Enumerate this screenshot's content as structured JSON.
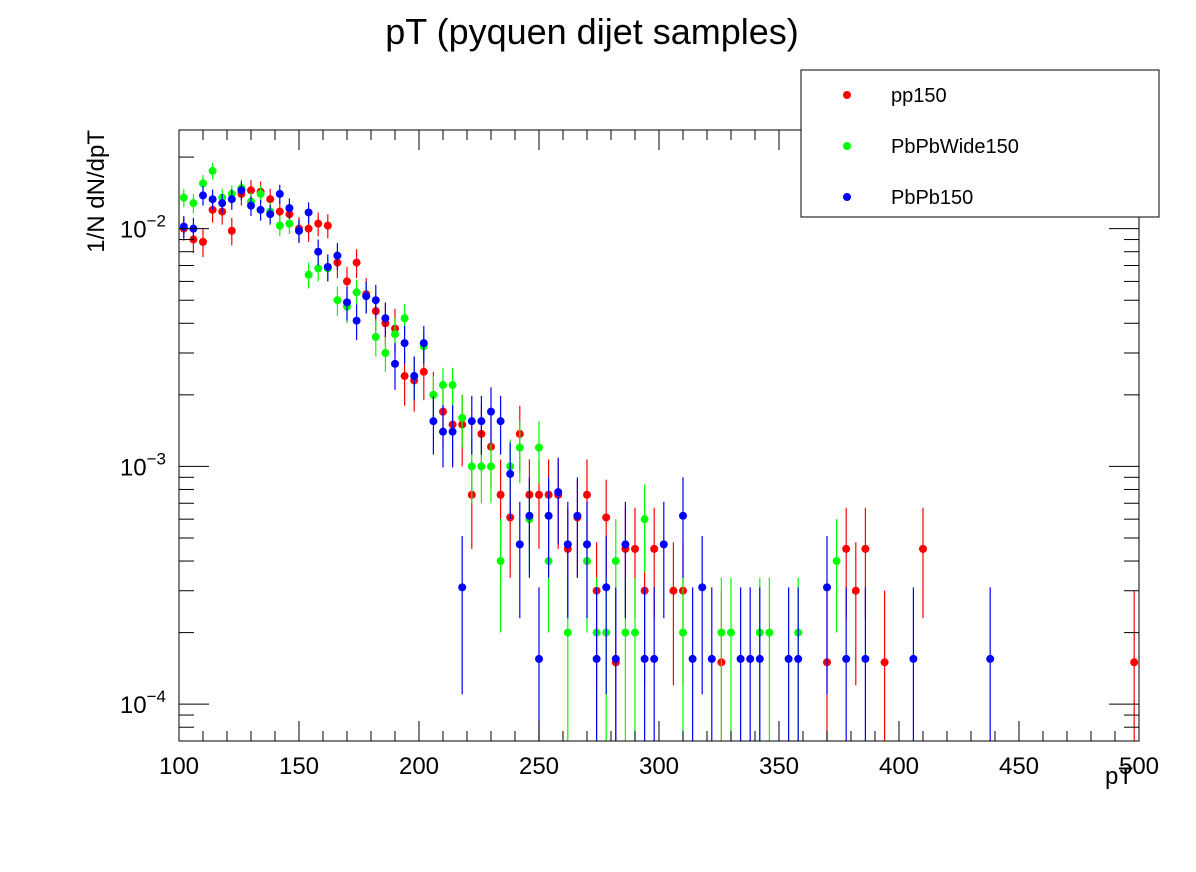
{
  "chart_data": {
    "type": "scatter",
    "title": "pT (pyquen dijet samples)",
    "xlabel": "pT",
    "ylabel": "1/N dN/dpT",
    "xlim": [
      100,
      500
    ],
    "ylim": [
      7e-05,
      0.026
    ],
    "yscale": "log",
    "x_ticks": [
      100,
      150,
      200,
      250,
      300,
      350,
      400,
      450,
      500
    ],
    "y_ticks": [
      {
        "value": 0.0001,
        "base": "10",
        "exp": "−4"
      },
      {
        "value": 0.001,
        "base": "10",
        "exp": "−3"
      },
      {
        "value": 0.01,
        "base": "10",
        "exp": "−2"
      }
    ],
    "legend_position": "top-right",
    "grid": false,
    "series": [
      {
        "name": "pp150",
        "color": "#ff0000",
        "points": [
          [
            102,
            0.01,
            0.0011
          ],
          [
            106,
            0.009,
            0.0011
          ],
          [
            110,
            0.0088,
            0.0012
          ],
          [
            114,
            0.012,
            0.0014
          ],
          [
            118,
            0.0118,
            0.0014
          ],
          [
            122,
            0.0098,
            0.0013
          ],
          [
            126,
            0.014,
            0.0015
          ],
          [
            130,
            0.0145,
            0.0015
          ],
          [
            134,
            0.0143,
            0.0015
          ],
          [
            138,
            0.0133,
            0.0014
          ],
          [
            142,
            0.0118,
            0.0013
          ],
          [
            146,
            0.0115,
            0.0013
          ],
          [
            150,
            0.01,
            0.0012
          ],
          [
            154,
            0.01,
            0.0012
          ],
          [
            158,
            0.0105,
            0.0012
          ],
          [
            162,
            0.0103,
            0.0012
          ],
          [
            166,
            0.0072,
            0.001
          ],
          [
            170,
            0.006,
            0.0009
          ],
          [
            174,
            0.0072,
            0.001
          ],
          [
            178,
            0.0053,
            0.0009
          ],
          [
            182,
            0.0045,
            0.0008
          ],
          [
            186,
            0.004,
            0.0008
          ],
          [
            190,
            0.0038,
            0.0008
          ],
          [
            194,
            0.0024,
            0.0006
          ],
          [
            198,
            0.0023,
            0.0006
          ],
          [
            202,
            0.0025,
            0.0006
          ],
          [
            206,
            0.002,
            0.0005
          ],
          [
            210,
            0.0017,
            0.0005
          ],
          [
            214,
            0.0015,
            0.0005
          ],
          [
            218,
            0.0015,
            0.0005
          ],
          [
            222,
            0.00076,
            0.00031
          ],
          [
            226,
            0.00137,
            0.00043
          ],
          [
            230,
            0.00121,
            0.0004
          ],
          [
            234,
            0.00076,
            0.00031
          ],
          [
            238,
            0.00061,
            0.00027
          ],
          [
            242,
            0.00137,
            0.00043
          ],
          [
            246,
            0.00076,
            0.00031
          ],
          [
            250,
            0.00076,
            0.00031
          ],
          [
            254,
            0.00076,
            0.00031
          ],
          [
            258,
            0.00076,
            0.00031
          ],
          [
            262,
            0.00045,
            0.00022
          ],
          [
            266,
            0.00061,
            0.00027
          ],
          [
            270,
            0.00076,
            0.00031
          ],
          [
            274,
            0.0003,
            0.00018
          ],
          [
            278,
            0.00061,
            0.00027
          ],
          [
            282,
            0.00015,
            0.00015
          ],
          [
            286,
            0.00045,
            0.00022
          ],
          [
            290,
            0.00045,
            0.00022
          ],
          [
            294,
            0.0003,
            0.00018
          ],
          [
            298,
            0.00045,
            0.00022
          ],
          [
            306,
            0.0003,
            0.00018
          ],
          [
            310,
            0.0003,
            0.00018
          ],
          [
            326,
            0.00015,
            0.00015
          ],
          [
            370,
            0.00015,
            0.00015
          ],
          [
            378,
            0.00045,
            0.00022
          ],
          [
            382,
            0.0003,
            0.00018
          ],
          [
            386,
            0.00045,
            0.00022
          ],
          [
            394,
            0.00015,
            0.00015
          ],
          [
            410,
            0.00045,
            0.00022
          ],
          [
            498,
            0.00015,
            0.00015
          ]
        ]
      },
      {
        "name": "PbPbWide150",
        "color": "#00ff00",
        "points": [
          [
            102,
            0.0135,
            0.0012
          ],
          [
            106,
            0.0128,
            0.0012
          ],
          [
            110,
            0.0155,
            0.0013
          ],
          [
            114,
            0.0175,
            0.0014
          ],
          [
            118,
            0.0135,
            0.0012
          ],
          [
            122,
            0.014,
            0.0012
          ],
          [
            126,
            0.0148,
            0.0013
          ],
          [
            130,
            0.013,
            0.0012
          ],
          [
            134,
            0.014,
            0.0012
          ],
          [
            138,
            0.0118,
            0.0011
          ],
          [
            142,
            0.0103,
            0.001
          ],
          [
            146,
            0.0105,
            0.001
          ],
          [
            150,
            0.0098,
            0.001
          ],
          [
            154,
            0.0064,
            0.0008
          ],
          [
            158,
            0.0068,
            0.0008
          ],
          [
            162,
            0.0068,
            0.0008
          ],
          [
            166,
            0.005,
            0.0007
          ],
          [
            170,
            0.0047,
            0.0007
          ],
          [
            174,
            0.0054,
            0.0007
          ],
          [
            178,
            0.0052,
            0.0007
          ],
          [
            182,
            0.0035,
            0.0006
          ],
          [
            186,
            0.003,
            0.0005
          ],
          [
            190,
            0.0036,
            0.0006
          ],
          [
            194,
            0.0042,
            0.0006
          ],
          [
            198,
            0.0024,
            0.0005
          ],
          [
            202,
            0.0032,
            0.0005
          ],
          [
            206,
            0.002,
            0.0004
          ],
          [
            210,
            0.0022,
            0.0004
          ],
          [
            214,
            0.0022,
            0.0004
          ],
          [
            218,
            0.0016,
            0.0004
          ],
          [
            222,
            0.001,
            0.0003
          ],
          [
            226,
            0.001,
            0.0003
          ],
          [
            230,
            0.001,
            0.0003
          ],
          [
            234,
            0.0004,
            0.0002
          ],
          [
            238,
            0.001,
            0.0003
          ],
          [
            242,
            0.0012,
            0.00035
          ],
          [
            246,
            0.0006,
            0.00024
          ],
          [
            250,
            0.0012,
            0.00035
          ],
          [
            254,
            0.0004,
            0.0002
          ],
          [
            262,
            0.0002,
            0.00014
          ],
          [
            270,
            0.0004,
            0.0002
          ],
          [
            274,
            0.0002,
            0.00014
          ],
          [
            278,
            0.0002,
            0.00014
          ],
          [
            282,
            0.0004,
            0.0002
          ],
          [
            286,
            0.0002,
            0.00014
          ],
          [
            290,
            0.0002,
            0.00014
          ],
          [
            294,
            0.0006,
            0.00024
          ],
          [
            310,
            0.0002,
            0.00014
          ],
          [
            326,
            0.0002,
            0.00014
          ],
          [
            330,
            0.0002,
            0.00014
          ],
          [
            342,
            0.0002,
            0.00014
          ],
          [
            346,
            0.0002,
            0.00014
          ],
          [
            358,
            0.0002,
            0.00014
          ],
          [
            374,
            0.0004,
            0.0002
          ]
        ]
      },
      {
        "name": "PbPb150",
        "color": "#0000ff",
        "points": [
          [
            102,
            0.0102,
            0.0011
          ],
          [
            106,
            0.01,
            0.0011
          ],
          [
            110,
            0.0138,
            0.0013
          ],
          [
            114,
            0.0133,
            0.0013
          ],
          [
            118,
            0.0128,
            0.0012
          ],
          [
            122,
            0.0133,
            0.0013
          ],
          [
            126,
            0.0145,
            0.0013
          ],
          [
            130,
            0.0125,
            0.0012
          ],
          [
            134,
            0.012,
            0.0012
          ],
          [
            138,
            0.0115,
            0.0011
          ],
          [
            142,
            0.014,
            0.0013
          ],
          [
            146,
            0.0122,
            0.0012
          ],
          [
            150,
            0.0098,
            0.0011
          ],
          [
            154,
            0.0117,
            0.0012
          ],
          [
            158,
            0.008,
            0.001
          ],
          [
            162,
            0.0069,
            0.0009
          ],
          [
            166,
            0.0077,
            0.001
          ],
          [
            170,
            0.0049,
            0.0008
          ],
          [
            174,
            0.0041,
            0.0007
          ],
          [
            178,
            0.0052,
            0.0008
          ],
          [
            182,
            0.005,
            0.0008
          ],
          [
            186,
            0.0042,
            0.0007
          ],
          [
            190,
            0.0027,
            0.0006
          ],
          [
            194,
            0.0033,
            0.0006
          ],
          [
            198,
            0.0024,
            0.0005
          ],
          [
            202,
            0.0033,
            0.0006
          ],
          [
            206,
            0.00155,
            0.00043
          ],
          [
            210,
            0.0014,
            0.00041
          ],
          [
            214,
            0.0014,
            0.00041
          ],
          [
            218,
            0.00031,
            0.0002
          ],
          [
            222,
            0.00155,
            0.00043
          ],
          [
            226,
            0.00155,
            0.00043
          ],
          [
            230,
            0.0017,
            0.00045
          ],
          [
            234,
            0.00155,
            0.00043
          ],
          [
            238,
            0.00093,
            0.00033
          ],
          [
            242,
            0.00047,
            0.00024
          ],
          [
            246,
            0.00062,
            0.00028
          ],
          [
            250,
            0.000155,
            0.000155
          ],
          [
            254,
            0.00062,
            0.00028
          ],
          [
            258,
            0.00078,
            0.00031
          ],
          [
            262,
            0.00047,
            0.00024
          ],
          [
            266,
            0.00062,
            0.00028
          ],
          [
            270,
            0.00047,
            0.00024
          ],
          [
            274,
            0.000155,
            0.000155
          ],
          [
            278,
            0.00031,
            0.0002
          ],
          [
            282,
            0.000155,
            0.000155
          ],
          [
            286,
            0.00047,
            0.00024
          ],
          [
            294,
            0.000155,
            0.000155
          ],
          [
            298,
            0.000155,
            0.000155
          ],
          [
            302,
            0.00047,
            0.00024
          ],
          [
            310,
            0.00062,
            0.00028
          ],
          [
            314,
            0.000155,
            0.000155
          ],
          [
            318,
            0.00031,
            0.0002
          ],
          [
            322,
            0.000155,
            0.000155
          ],
          [
            334,
            0.000155,
            0.000155
          ],
          [
            338,
            0.000155,
            0.000155
          ],
          [
            342,
            0.000155,
            0.000155
          ],
          [
            354,
            0.000155,
            0.000155
          ],
          [
            358,
            0.000155,
            0.000155
          ],
          [
            370,
            0.00031,
            0.0002
          ],
          [
            378,
            0.000155,
            0.000155
          ],
          [
            386,
            0.000155,
            0.000155
          ],
          [
            406,
            0.000155,
            0.000155
          ],
          [
            438,
            0.000155,
            0.000155
          ]
        ]
      }
    ]
  }
}
